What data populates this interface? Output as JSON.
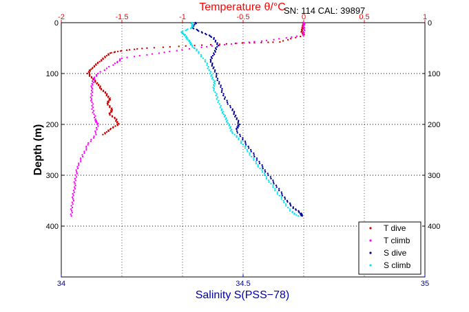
{
  "chart_data": {
    "type": "scatter",
    "title": "",
    "header_note": "SN: 114  CAL: 39897",
    "top_axis": {
      "label": "Temperature θ/°C",
      "range": [
        -2,
        1
      ],
      "ticks": [
        "-2",
        "-1.5",
        "-1",
        "-0.5",
        "0",
        "0.5",
        "1"
      ],
      "color": "#ff0000"
    },
    "bottom_axis": {
      "label": "Salinity S(PSS−78)",
      "range": [
        34,
        35
      ],
      "ticks": [
        "34",
        "34.5",
        "35"
      ],
      "color": "#0000aa"
    },
    "y_axis": {
      "label": "Depth (m)",
      "range": [
        0,
        500
      ],
      "reversed": true,
      "ticks": [
        "0",
        "100",
        "200",
        "300",
        "400"
      ]
    },
    "grid": true,
    "legend_position": "bottom-right",
    "series": [
      {
        "name": "T dive",
        "axis": "temperature",
        "color": "#cc0000",
        "points": [
          [
            0.0,
            0
          ],
          [
            0.0,
            5
          ],
          [
            -0.02,
            15
          ],
          [
            0.0,
            25
          ],
          [
            -0.2,
            38
          ],
          [
            -0.5,
            40
          ],
          [
            -0.9,
            45
          ],
          [
            -1.3,
            50
          ],
          [
            -1.5,
            55
          ],
          [
            -1.6,
            60
          ],
          [
            -1.65,
            70
          ],
          [
            -1.7,
            80
          ],
          [
            -1.75,
            90
          ],
          [
            -1.78,
            100
          ],
          [
            -1.74,
            110
          ],
          [
            -1.7,
            120
          ],
          [
            -1.67,
            130
          ],
          [
            -1.63,
            140
          ],
          [
            -1.6,
            150
          ],
          [
            -1.62,
            160
          ],
          [
            -1.58,
            170
          ],
          [
            -1.6,
            180
          ],
          [
            -1.55,
            190
          ],
          [
            -1.53,
            200
          ],
          [
            -1.6,
            210
          ],
          [
            -1.65,
            220
          ]
        ]
      },
      {
        "name": "T climb",
        "axis": "temperature",
        "color": "#ff00ff",
        "points": [
          [
            -1.92,
            380
          ],
          [
            -1.91,
            360
          ],
          [
            -1.9,
            340
          ],
          [
            -1.89,
            320
          ],
          [
            -1.88,
            300
          ],
          [
            -1.86,
            280
          ],
          [
            -1.82,
            260
          ],
          [
            -1.78,
            240
          ],
          [
            -1.72,
            220
          ],
          [
            -1.7,
            200
          ],
          [
            -1.72,
            190
          ],
          [
            -1.74,
            170
          ],
          [
            -1.75,
            150
          ],
          [
            -1.75,
            130
          ],
          [
            -1.74,
            115
          ],
          [
            -1.7,
            100
          ],
          [
            -1.55,
            80
          ],
          [
            -1.5,
            70
          ],
          [
            -1.2,
            60
          ],
          [
            -0.9,
            50
          ],
          [
            -0.6,
            42
          ],
          [
            -0.3,
            35
          ],
          [
            0.0,
            25
          ],
          [
            0.0,
            10
          ],
          [
            0.0,
            0
          ]
        ]
      },
      {
        "name": "S dive",
        "axis": "salinity",
        "color": "#000099",
        "points": [
          [
            34.37,
            0
          ],
          [
            34.36,
            10
          ],
          [
            34.39,
            20
          ],
          [
            34.42,
            30
          ],
          [
            34.43,
            45
          ],
          [
            34.42,
            60
          ],
          [
            34.41,
            75
          ],
          [
            34.42,
            90
          ],
          [
            34.43,
            110
          ],
          [
            34.44,
            130
          ],
          [
            34.45,
            150
          ],
          [
            34.47,
            170
          ],
          [
            34.48,
            185
          ],
          [
            34.49,
            200
          ],
          [
            34.48,
            210
          ],
          [
            34.5,
            230
          ],
          [
            34.52,
            250
          ],
          [
            34.54,
            270
          ],
          [
            34.56,
            290
          ],
          [
            34.58,
            310
          ],
          [
            34.6,
            330
          ],
          [
            34.62,
            350
          ],
          [
            34.64,
            365
          ],
          [
            34.66,
            375
          ],
          [
            34.66,
            380
          ]
        ]
      },
      {
        "name": "S climb",
        "axis": "salinity",
        "color": "#00e5ee",
        "points": [
          [
            34.65,
            380
          ],
          [
            34.63,
            370
          ],
          [
            34.61,
            350
          ],
          [
            34.59,
            330
          ],
          [
            34.57,
            310
          ],
          [
            34.55,
            290
          ],
          [
            34.53,
            270
          ],
          [
            34.51,
            250
          ],
          [
            34.49,
            230
          ],
          [
            34.47,
            215
          ],
          [
            34.46,
            200
          ],
          [
            34.45,
            185
          ],
          [
            34.44,
            170
          ],
          [
            34.43,
            150
          ],
          [
            34.42,
            130
          ],
          [
            34.42,
            115
          ],
          [
            34.41,
            100
          ],
          [
            34.4,
            80
          ],
          [
            34.38,
            60
          ],
          [
            34.36,
            45
          ],
          [
            34.35,
            35
          ],
          [
            34.34,
            25
          ],
          [
            34.33,
            18
          ],
          [
            34.36,
            10
          ],
          [
            34.36,
            0
          ]
        ]
      }
    ]
  }
}
